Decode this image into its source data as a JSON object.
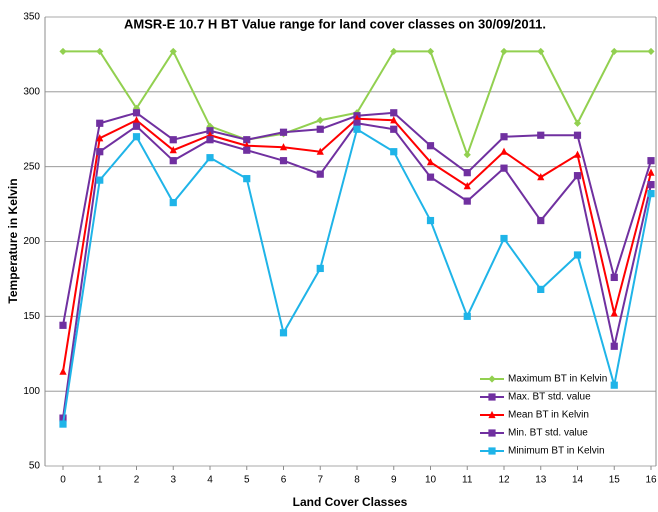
{
  "chart_data": {
    "type": "line",
    "title": "AMSR-E 10.7 H BT Value range for land cover classes on 30/09/2011.",
    "x_label": "Land Cover Classes",
    "y_label": "Temperature in Kelvin",
    "x": [
      0,
      1,
      2,
      3,
      4,
      5,
      6,
      7,
      8,
      9,
      10,
      11,
      12,
      13,
      14,
      15,
      16
    ],
    "xlim": [
      0,
      16
    ],
    "xticks": [
      0,
      1,
      2,
      3,
      4,
      5,
      6,
      7,
      8,
      9,
      10,
      11,
      12,
      13,
      14,
      15,
      16
    ],
    "ylim": [
      50,
      350
    ],
    "yticks": [
      50,
      100,
      150,
      200,
      250,
      300,
      350
    ],
    "grid": true,
    "legend": "lower-right",
    "series": [
      {
        "name": "Maximum BT in Kelvin",
        "color": "#92d050",
        "marker": "diamond",
        "values": [
          327,
          327,
          289,
          327,
          277,
          268,
          272,
          281,
          286,
          327,
          327,
          258,
          327,
          327,
          279,
          327,
          327
        ]
      },
      {
        "name": "Max. BT std. value",
        "color": "#7030a0",
        "marker": "square",
        "values": [
          144,
          279,
          286,
          268,
          274,
          268,
          273,
          275,
          284,
          286,
          264,
          246,
          270,
          271,
          271,
          176,
          254
        ]
      },
      {
        "name": "Mean BT in Kelvin",
        "color": "#ff0000",
        "marker": "triangle",
        "values": [
          113,
          269,
          281,
          261,
          271,
          264,
          263,
          260,
          282,
          281,
          253,
          237,
          260,
          243,
          258,
          152,
          246
        ]
      },
      {
        "name": "Min. BT std. value",
        "color": "#7030a0",
        "marker": "square",
        "values": [
          82,
          260,
          277,
          254,
          268,
          261,
          254,
          245,
          279,
          275,
          243,
          227,
          249,
          214,
          244,
          130,
          238
        ]
      },
      {
        "name": "Minimum BT in Kelvin",
        "color": "#1fb4e8",
        "marker": "square",
        "values": [
          78,
          241,
          270,
          226,
          256,
          242,
          139,
          182,
          275,
          260,
          214,
          150,
          202,
          168,
          191,
          104,
          232
        ]
      }
    ]
  }
}
